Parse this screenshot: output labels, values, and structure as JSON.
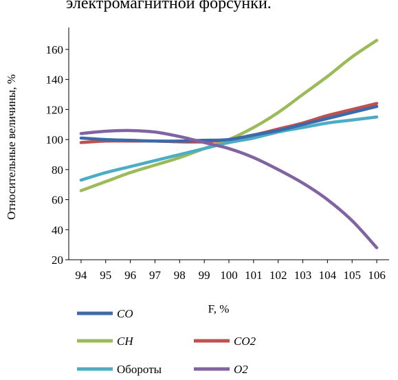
{
  "heading_fragment": "электромагнитной форсунки.",
  "chart_data": {
    "type": "line",
    "xlabel": "F, %",
    "ylabel": "Относительные величины, %",
    "x": [
      94,
      95,
      96,
      97,
      98,
      99,
      100,
      101,
      102,
      103,
      104,
      105,
      106
    ],
    "xlim": [
      93.5,
      106.5
    ],
    "ylim": [
      20,
      170
    ],
    "yticks": [
      20,
      40,
      60,
      80,
      100,
      120,
      140,
      160
    ],
    "grid": false,
    "legend": "bottom",
    "series": [
      {
        "name": "CO",
        "italic": true,
        "color": "#3a6aaa",
        "values": [
          101,
          100,
          99.5,
          99,
          99,
          99.5,
          100,
          103,
          106,
          110,
          114,
          118,
          122
        ]
      },
      {
        "name": "CH",
        "italic": true,
        "color": "#9bbb59",
        "values": [
          66,
          72,
          78,
          83,
          88,
          94,
          100,
          108,
          118,
          130,
          142,
          155,
          166
        ]
      },
      {
        "name": "CO2",
        "italic": true,
        "color": "#c0504d",
        "values": [
          98,
          99,
          99,
          99,
          98.5,
          98.5,
          100,
          103,
          107,
          111,
          116,
          120,
          124
        ]
      },
      {
        "name": "Обороты",
        "italic": false,
        "color": "#4bacc6",
        "values": [
          73,
          78,
          82,
          86,
          90,
          94,
          98,
          101,
          105,
          108,
          111,
          113,
          115
        ]
      },
      {
        "name": "O2",
        "italic": true,
        "color": "#8064a2",
        "values": [
          104,
          105.5,
          106,
          105,
          102,
          98,
          94,
          88,
          80,
          71,
          60,
          46,
          28
        ]
      }
    ]
  }
}
